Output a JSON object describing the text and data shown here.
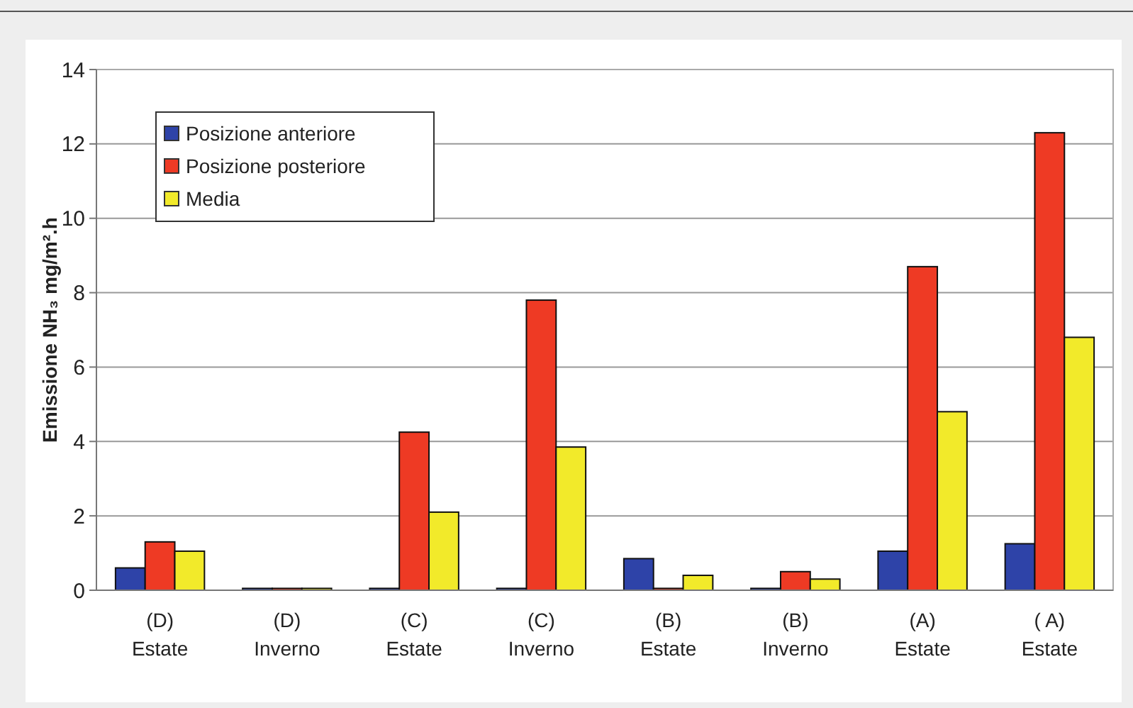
{
  "chart_data": {
    "type": "bar",
    "ylabel": "Emissione NH₃ mg/m².h",
    "categories": [
      "(D)\nEstate",
      "(D)\nInverno",
      "(C)\nEstate",
      "(C)\nInverno",
      "(B)\nEstate",
      "(B)\nInverno",
      "(A)\nEstate",
      "( A)\nEstate"
    ],
    "series": [
      {
        "name": "Posizione anteriore",
        "color": "#2e43a8",
        "values": [
          0.6,
          0.05,
          0.05,
          0.05,
          0.85,
          0.05,
          1.05,
          1.25
        ]
      },
      {
        "name": "Posizione posteriore",
        "color": "#ee3a24",
        "values": [
          1.3,
          0.05,
          4.25,
          7.8,
          0.05,
          0.5,
          8.7,
          12.3
        ]
      },
      {
        "name": "Media",
        "color": "#f2ea2a",
        "values": [
          1.05,
          0.05,
          2.1,
          3.85,
          0.4,
          0.3,
          4.8,
          6.8
        ]
      }
    ],
    "ylim": [
      0,
      14
    ],
    "yticks": [
      0,
      2,
      4,
      6,
      8,
      10,
      12,
      14
    ],
    "grid": "y",
    "legend": "top left"
  }
}
